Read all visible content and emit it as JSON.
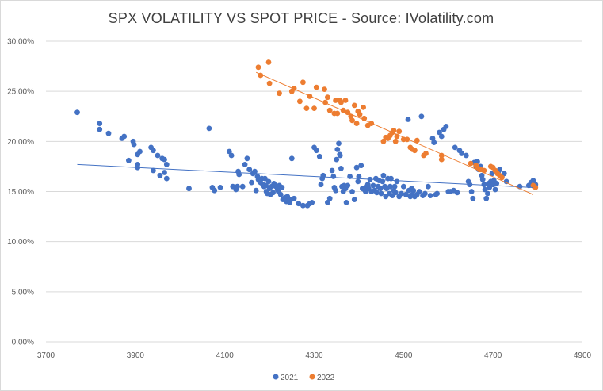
{
  "chart_data": {
    "type": "scatter",
    "title": "SPX VOLATILITY VS SPOT PRICE - Source: IVolatility.com",
    "xlabel": "",
    "ylabel": "",
    "xlim": [
      3700,
      4900
    ],
    "ylim": [
      0,
      0.3
    ],
    "x_ticks": [
      3700,
      3900,
      4100,
      4300,
      4500,
      4700,
      4900
    ],
    "x_tick_labels": [
      "3700",
      "3900",
      "4100",
      "4300",
      "4500",
      "4700",
      "4900"
    ],
    "y_ticks": [
      0,
      0.05,
      0.1,
      0.15,
      0.2,
      0.25,
      0.3
    ],
    "y_tick_labels": [
      "0.00%",
      "5.00%",
      "10.00%",
      "15.00%",
      "20.00%",
      "25.00%",
      "30.00%"
    ],
    "grid": "horizontal",
    "legend_position": "bottom",
    "series": [
      {
        "name": "2021",
        "color": "#4472C4",
        "trendline": {
          "type": "linear",
          "x": [
            3770,
            4790
          ],
          "y": [
            0.177,
            0.154
          ]
        },
        "points": [
          [
            3770,
            0.229
          ],
          [
            3820,
            0.218
          ],
          [
            3820,
            0.212
          ],
          [
            3840,
            0.208
          ],
          [
            3870,
            0.203
          ],
          [
            3875,
            0.205
          ],
          [
            3885,
            0.181
          ],
          [
            3895,
            0.2
          ],
          [
            3897,
            0.197
          ],
          [
            3905,
            0.177
          ],
          [
            3905,
            0.174
          ],
          [
            3905,
            0.187
          ],
          [
            3910,
            0.19
          ],
          [
            3935,
            0.194
          ],
          [
            3940,
            0.191
          ],
          [
            3940,
            0.171
          ],
          [
            3950,
            0.186
          ],
          [
            3955,
            0.166
          ],
          [
            3960,
            0.183
          ],
          [
            3965,
            0.182
          ],
          [
            3965,
            0.169
          ],
          [
            3970,
            0.163
          ],
          [
            3970,
            0.177
          ],
          [
            4020,
            0.153
          ],
          [
            4065,
            0.213
          ],
          [
            4072,
            0.154
          ],
          [
            4077,
            0.151
          ],
          [
            4090,
            0.154
          ],
          [
            4110,
            0.19
          ],
          [
            4115,
            0.186
          ],
          [
            4118,
            0.155
          ],
          [
            4125,
            0.152
          ],
          [
            4128,
            0.155
          ],
          [
            4130,
            0.17
          ],
          [
            4132,
            0.167
          ],
          [
            4140,
            0.155
          ],
          [
            4145,
            0.177
          ],
          [
            4150,
            0.183
          ],
          [
            4155,
            0.172
          ],
          [
            4160,
            0.159
          ],
          [
            4163,
            0.168
          ],
          [
            4167,
            0.17
          ],
          [
            4170,
            0.151
          ],
          [
            4173,
            0.165
          ],
          [
            4175,
            0.162
          ],
          [
            4178,
            0.16
          ],
          [
            4180,
            0.159
          ],
          [
            4183,
            0.163
          ],
          [
            4185,
            0.157
          ],
          [
            4188,
            0.155
          ],
          [
            4190,
            0.163
          ],
          [
            4192,
            0.156
          ],
          [
            4193,
            0.15
          ],
          [
            4195,
            0.148
          ],
          [
            4198,
            0.16
          ],
          [
            4200,
            0.153
          ],
          [
            4202,
            0.147
          ],
          [
            4205,
            0.155
          ],
          [
            4208,
            0.149
          ],
          [
            4210,
            0.158
          ],
          [
            4215,
            0.155
          ],
          [
            4218,
            0.152
          ],
          [
            4220,
            0.15
          ],
          [
            4222,
            0.156
          ],
          [
            4225,
            0.147
          ],
          [
            4228,
            0.154
          ],
          [
            4230,
            0.142
          ],
          [
            4235,
            0.144
          ],
          [
            4238,
            0.14
          ],
          [
            4240,
            0.145
          ],
          [
            4243,
            0.141
          ],
          [
            4245,
            0.139
          ],
          [
            4248,
            0.142
          ],
          [
            4250,
            0.183
          ],
          [
            4255,
            0.143
          ],
          [
            4265,
            0.138
          ],
          [
            4275,
            0.136
          ],
          [
            4285,
            0.136
          ],
          [
            4290,
            0.138
          ],
          [
            4295,
            0.139
          ],
          [
            4300,
            0.194
          ],
          [
            4305,
            0.191
          ],
          [
            4312,
            0.185
          ],
          [
            4315,
            0.157
          ],
          [
            4318,
            0.163
          ],
          [
            4320,
            0.166
          ],
          [
            4330,
            0.139
          ],
          [
            4335,
            0.143
          ],
          [
            4340,
            0.171
          ],
          [
            4343,
            0.165
          ],
          [
            4345,
            0.154
          ],
          [
            4348,
            0.151
          ],
          [
            4350,
            0.182
          ],
          [
            4352,
            0.192
          ],
          [
            4355,
            0.198
          ],
          [
            4357,
            0.187
          ],
          [
            4358,
            0.186
          ],
          [
            4360,
            0.173
          ],
          [
            4362,
            0.155
          ],
          [
            4365,
            0.15
          ],
          [
            4367,
            0.156
          ],
          [
            4370,
            0.153
          ],
          [
            4372,
            0.139
          ],
          [
            4375,
            0.156
          ],
          [
            4380,
            0.165
          ],
          [
            4385,
            0.15
          ],
          [
            4390,
            0.142
          ],
          [
            4395,
            0.174
          ],
          [
            4398,
            0.16
          ],
          [
            4400,
            0.165
          ],
          [
            4405,
            0.176
          ],
          [
            4408,
            0.153
          ],
          [
            4412,
            0.152
          ],
          [
            4415,
            0.15
          ],
          [
            4418,
            0.155
          ],
          [
            4420,
            0.157
          ],
          [
            4422,
            0.153
          ],
          [
            4425,
            0.162
          ],
          [
            4428,
            0.15
          ],
          [
            4432,
            0.156
          ],
          [
            4435,
            0.151
          ],
          [
            4438,
            0.163
          ],
          [
            4440,
            0.149
          ],
          [
            4443,
            0.155
          ],
          [
            4445,
            0.161
          ],
          [
            4448,
            0.153
          ],
          [
            4450,
            0.148
          ],
          [
            4453,
            0.16
          ],
          [
            4455,
            0.166
          ],
          [
            4458,
            0.155
          ],
          [
            4460,
            0.145
          ],
          [
            4462,
            0.153
          ],
          [
            4465,
            0.163
          ],
          [
            4468,
            0.148
          ],
          [
            4470,
            0.155
          ],
          [
            4472,
            0.163
          ],
          [
            4475,
            0.146
          ],
          [
            4478,
            0.151
          ],
          [
            4480,
            0.155
          ],
          [
            4482,
            0.149
          ],
          [
            4485,
            0.16
          ],
          [
            4490,
            0.145
          ],
          [
            4495,
            0.148
          ],
          [
            4500,
            0.155
          ],
          [
            4505,
            0.147
          ],
          [
            4510,
            0.222
          ],
          [
            4512,
            0.151
          ],
          [
            4515,
            0.145
          ],
          [
            4518,
            0.153
          ],
          [
            4520,
            0.147
          ],
          [
            4522,
            0.151
          ],
          [
            4525,
            0.145
          ],
          [
            4530,
            0.147
          ],
          [
            4535,
            0.15
          ],
          [
            4540,
            0.225
          ],
          [
            4543,
            0.146
          ],
          [
            4548,
            0.148
          ],
          [
            4555,
            0.155
          ],
          [
            4560,
            0.146
          ],
          [
            4565,
            0.203
          ],
          [
            4568,
            0.199
          ],
          [
            4572,
            0.147
          ],
          [
            4575,
            0.148
          ],
          [
            4580,
            0.209
          ],
          [
            4585,
            0.205
          ],
          [
            4590,
            0.212
          ],
          [
            4595,
            0.215
          ],
          [
            4600,
            0.15
          ],
          [
            4605,
            0.15
          ],
          [
            4612,
            0.151
          ],
          [
            4615,
            0.194
          ],
          [
            4620,
            0.149
          ],
          [
            4625,
            0.191
          ],
          [
            4630,
            0.188
          ],
          [
            4640,
            0.186
          ],
          [
            4645,
            0.16
          ],
          [
            4648,
            0.157
          ],
          [
            4652,
            0.15
          ],
          [
            4655,
            0.143
          ],
          [
            4658,
            0.179
          ],
          [
            4662,
            0.175
          ],
          [
            4665,
            0.18
          ],
          [
            4668,
            0.172
          ],
          [
            4672,
            0.175
          ],
          [
            4675,
            0.166
          ],
          [
            4677,
            0.162
          ],
          [
            4680,
            0.157
          ],
          [
            4682,
            0.152
          ],
          [
            4685,
            0.143
          ],
          [
            4688,
            0.148
          ],
          [
            4690,
            0.158
          ],
          [
            4692,
            0.154
          ],
          [
            4695,
            0.16
          ],
          [
            4698,
            0.168
          ],
          [
            4700,
            0.157
          ],
          [
            4702,
            0.161
          ],
          [
            4705,
            0.152
          ],
          [
            4708,
            0.158
          ],
          [
            4712,
            0.17
          ],
          [
            4715,
            0.172
          ],
          [
            4720,
            0.165
          ],
          [
            4725,
            0.168
          ],
          [
            4730,
            0.16
          ],
          [
            4760,
            0.155
          ],
          [
            4780,
            0.156
          ],
          [
            4785,
            0.159
          ],
          [
            4790,
            0.161
          ],
          [
            4795,
            0.157
          ]
        ]
      },
      {
        "name": "2022",
        "color": "#ED7D31",
        "trendline": {
          "type": "linear",
          "x": [
            4170,
            4790
          ],
          "y": [
            0.269,
            0.147
          ]
        },
        "points": [
          [
            4175,
            0.274
          ],
          [
            4180,
            0.266
          ],
          [
            4198,
            0.279
          ],
          [
            4200,
            0.258
          ],
          [
            4222,
            0.248
          ],
          [
            4250,
            0.25
          ],
          [
            4255,
            0.253
          ],
          [
            4268,
            0.24
          ],
          [
            4275,
            0.259
          ],
          [
            4283,
            0.233
          ],
          [
            4290,
            0.245
          ],
          [
            4300,
            0.233
          ],
          [
            4305,
            0.254
          ],
          [
            4323,
            0.252
          ],
          [
            4325,
            0.239
          ],
          [
            4330,
            0.244
          ],
          [
            4335,
            0.231
          ],
          [
            4345,
            0.228
          ],
          [
            4348,
            0.241
          ],
          [
            4352,
            0.228
          ],
          [
            4358,
            0.241
          ],
          [
            4360,
            0.239
          ],
          [
            4365,
            0.231
          ],
          [
            4370,
            0.241
          ],
          [
            4375,
            0.229
          ],
          [
            4382,
            0.225
          ],
          [
            4385,
            0.221
          ],
          [
            4390,
            0.236
          ],
          [
            4395,
            0.218
          ],
          [
            4398,
            0.23
          ],
          [
            4402,
            0.227
          ],
          [
            4410,
            0.234
          ],
          [
            4412,
            0.223
          ],
          [
            4420,
            0.216
          ],
          [
            4428,
            0.218
          ],
          [
            4455,
            0.2
          ],
          [
            4460,
            0.204
          ],
          [
            4465,
            0.203
          ],
          [
            4470,
            0.206
          ],
          [
            4475,
            0.209
          ],
          [
            4478,
            0.211
          ],
          [
            4482,
            0.2
          ],
          [
            4485,
            0.205
          ],
          [
            4490,
            0.21
          ],
          [
            4500,
            0.202
          ],
          [
            4508,
            0.202
          ],
          [
            4515,
            0.194
          ],
          [
            4520,
            0.192
          ],
          [
            4525,
            0.191
          ],
          [
            4530,
            0.201
          ],
          [
            4545,
            0.186
          ],
          [
            4550,
            0.188
          ],
          [
            4585,
            0.186
          ],
          [
            4585,
            0.182
          ],
          [
            4650,
            0.178
          ],
          [
            4662,
            0.176
          ],
          [
            4665,
            0.174
          ],
          [
            4670,
            0.172
          ],
          [
            4672,
            0.172
          ],
          [
            4680,
            0.171
          ],
          [
            4695,
            0.175
          ],
          [
            4700,
            0.174
          ],
          [
            4705,
            0.171
          ],
          [
            4710,
            0.168
          ],
          [
            4715,
            0.166
          ],
          [
            4720,
            0.164
          ],
          [
            4790,
            0.156
          ],
          [
            4795,
            0.154
          ]
        ]
      }
    ]
  }
}
